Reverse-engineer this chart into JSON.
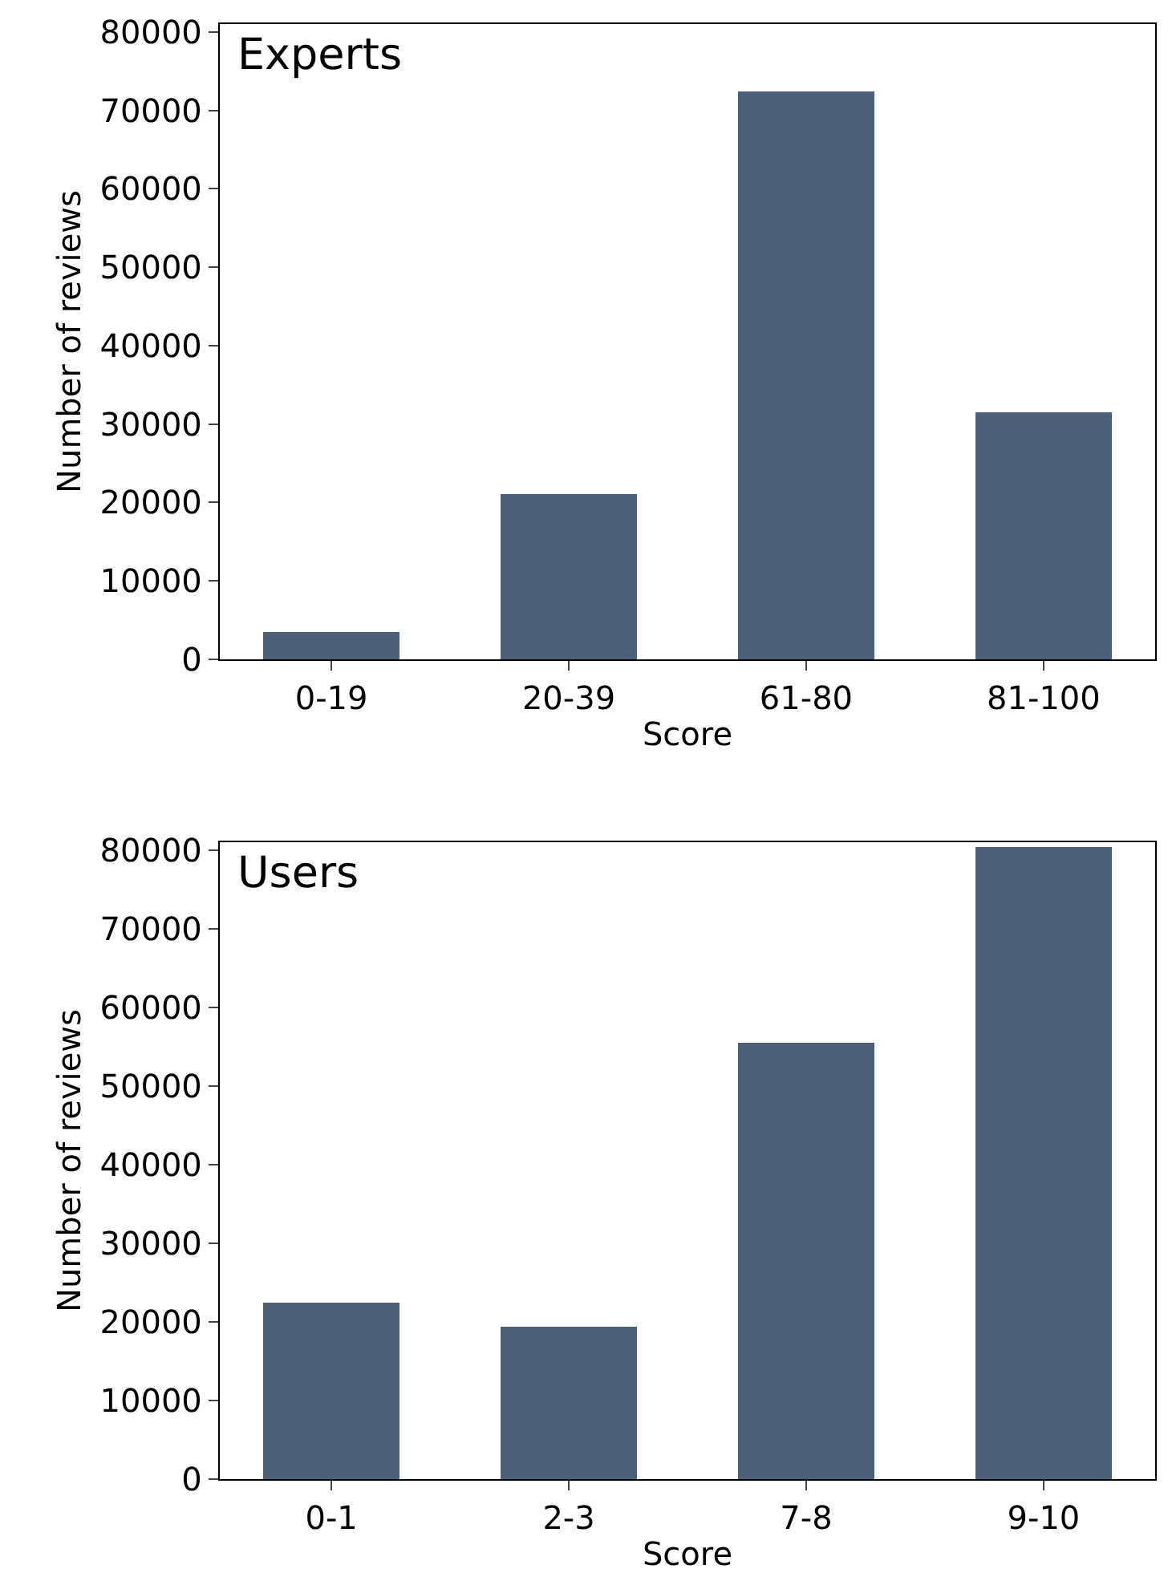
{
  "chart_data": [
    {
      "type": "bar",
      "title": "Experts",
      "xlabel": "Score",
      "ylabel": "Number of reviews",
      "categories": [
        "0-19",
        "20-39",
        "61-80",
        "81-100"
      ],
      "values": [
        3400,
        21000,
        72400,
        31500
      ],
      "color": "#4e5f78",
      "ylim": [
        0,
        81000
      ],
      "yticks": [
        0,
        10000,
        20000,
        30000,
        40000,
        50000,
        60000,
        70000,
        80000
      ]
    },
    {
      "type": "bar",
      "title": "Users",
      "xlabel": "Score",
      "ylabel": "Number of reviews",
      "categories": [
        "0-1",
        "2-3",
        "7-8",
        "9-10"
      ],
      "values": [
        22400,
        19300,
        55500,
        80300
      ],
      "color": "#4e5f78",
      "ylim": [
        0,
        81000
      ],
      "yticks": [
        0,
        10000,
        20000,
        30000,
        40000,
        50000,
        60000,
        70000,
        80000
      ]
    }
  ]
}
